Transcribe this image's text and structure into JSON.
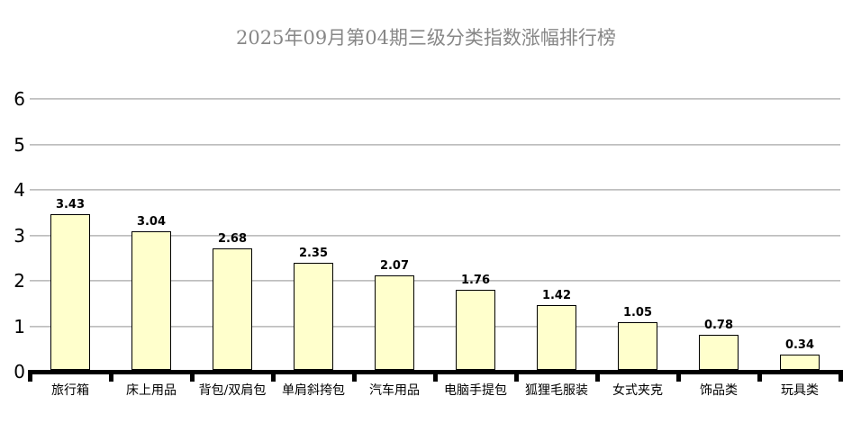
{
  "title": "2025年09月第04期三级分类指数涨幅排行榜",
  "chart_data": {
    "type": "bar",
    "title": "2025年09月第04期三级分类指数涨幅排行榜",
    "categories": [
      "旅行箱",
      "床上用品",
      "背包/双肩包",
      "单肩斜挎包",
      "汽车用品",
      "电脑手提包",
      "狐狸毛服装",
      "女式夹克",
      "饰品类",
      "玩具类"
    ],
    "values": [
      3.43,
      3.04,
      2.68,
      2.35,
      2.07,
      1.76,
      1.42,
      1.05,
      0.78,
      0.34
    ],
    "value_labels": [
      "3.43",
      "3.04",
      "2.68",
      "2.35",
      "2.07",
      "1.76",
      "1.42",
      "1.05",
      "0.78",
      "0.34"
    ],
    "xlabel": "",
    "ylabel": "",
    "ylim": [
      0,
      6
    ],
    "yticks": [
      0,
      1,
      2,
      3,
      4,
      5,
      6
    ],
    "grid": true,
    "legend": false,
    "colors": {
      "background": "#FFFFFF",
      "bar_fill": "#FFFFCC",
      "bar_border": "#000000",
      "gridline": "#BFBFBF",
      "axis_line": "#000000",
      "title_text": "#878787",
      "value_label_text": "#000000",
      "category_label_text": "#000000",
      "y_label_text": "#000000"
    }
  }
}
